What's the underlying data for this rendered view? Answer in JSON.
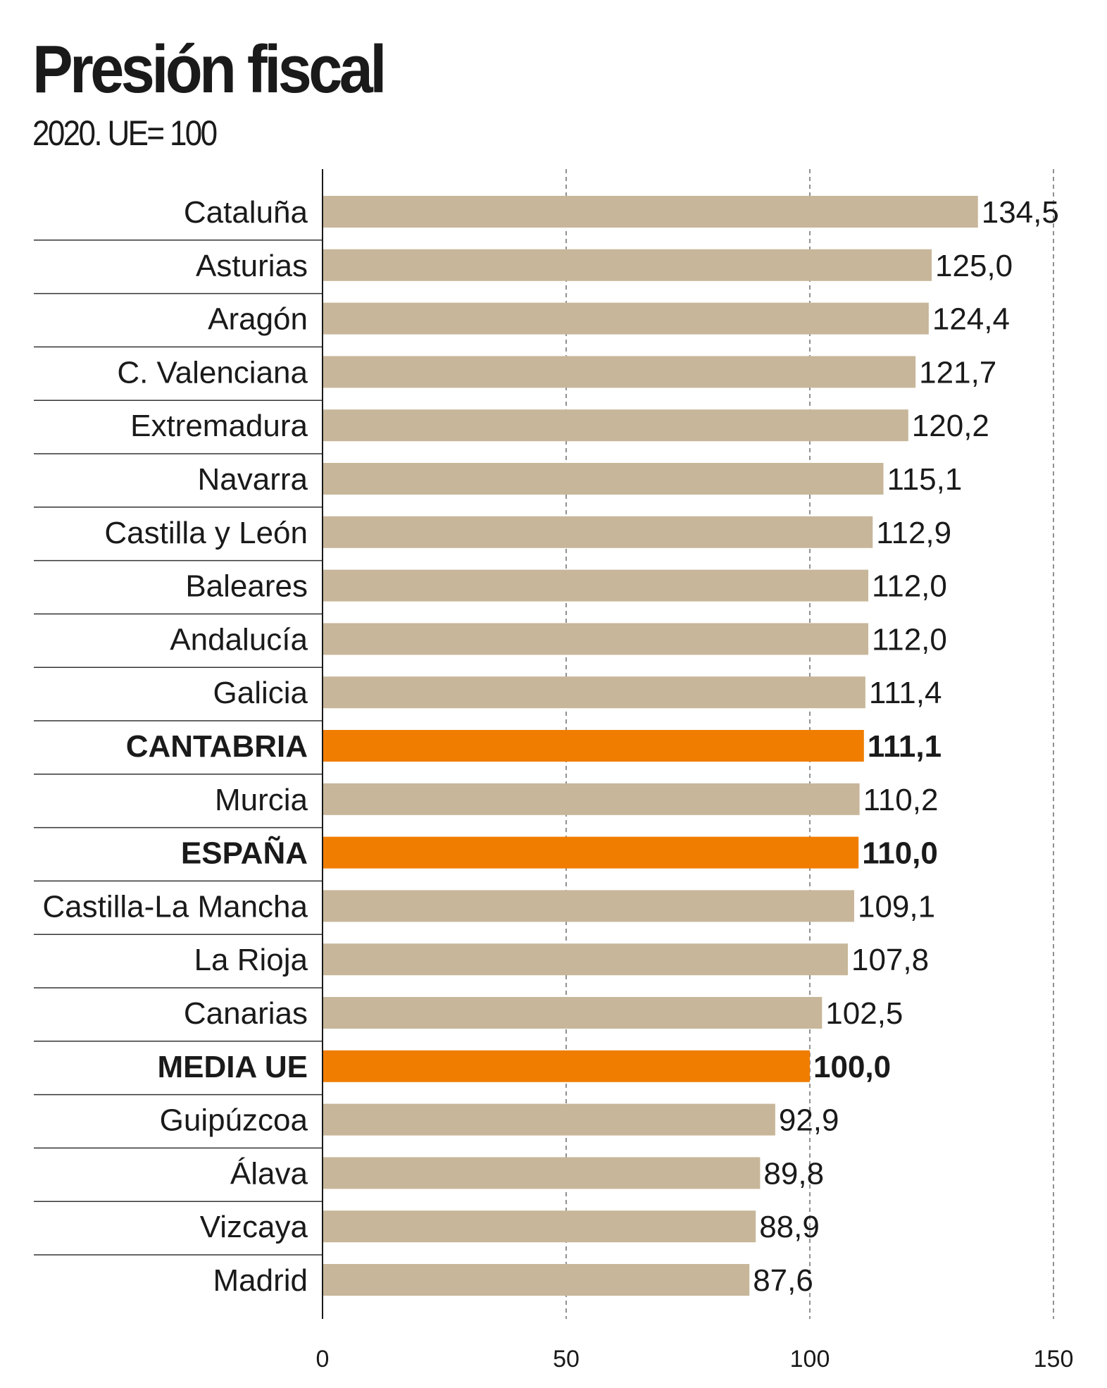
{
  "chart_data": {
    "type": "bar",
    "orientation": "horizontal",
    "title": "Presión fiscal",
    "subtitle": "2020. UE= 100",
    "categories": [
      "Cataluña",
      "Asturias",
      "Aragón",
      "C. Valenciana",
      "Extremadura",
      "Navarra",
      "Castilla y León",
      "Baleares",
      "Andalucía",
      "Galicia",
      "CANTABRIA",
      "Murcia",
      "ESPAÑA",
      "Castilla-La Mancha",
      "La Rioja",
      "Canarias",
      "MEDIA UE",
      "Guipúzcoa",
      "Álava",
      "Vizcaya",
      "Madrid"
    ],
    "values": [
      134.5,
      125.0,
      124.4,
      121.7,
      120.2,
      115.1,
      112.9,
      112.0,
      112.0,
      111.4,
      111.1,
      110.2,
      110.0,
      109.1,
      107.8,
      102.5,
      100.0,
      92.9,
      89.8,
      88.9,
      87.6
    ],
    "value_labels": [
      "134,5",
      "125,0",
      "124,4",
      "121,7",
      "120,2",
      "115,1",
      "112,9",
      "112,0",
      "112,0",
      "111,4",
      "111,1",
      "110,2",
      "110,0",
      "109,1",
      "107,8",
      "102,5",
      "100,0",
      "92,9",
      "89,8",
      "88,9",
      "87,6"
    ],
    "highlighted": [
      "CANTABRIA",
      "ESPAÑA",
      "MEDIA UE"
    ],
    "xlim": [
      0,
      150
    ],
    "xticks": [
      0,
      50,
      100,
      150
    ],
    "xtick_labels": [
      "0",
      "50",
      "100",
      "150"
    ],
    "grid": "vertical dashed",
    "colors": {
      "bar": "#c7b699",
      "highlight": "#f07d00",
      "text": "#1a1a1a"
    }
  }
}
